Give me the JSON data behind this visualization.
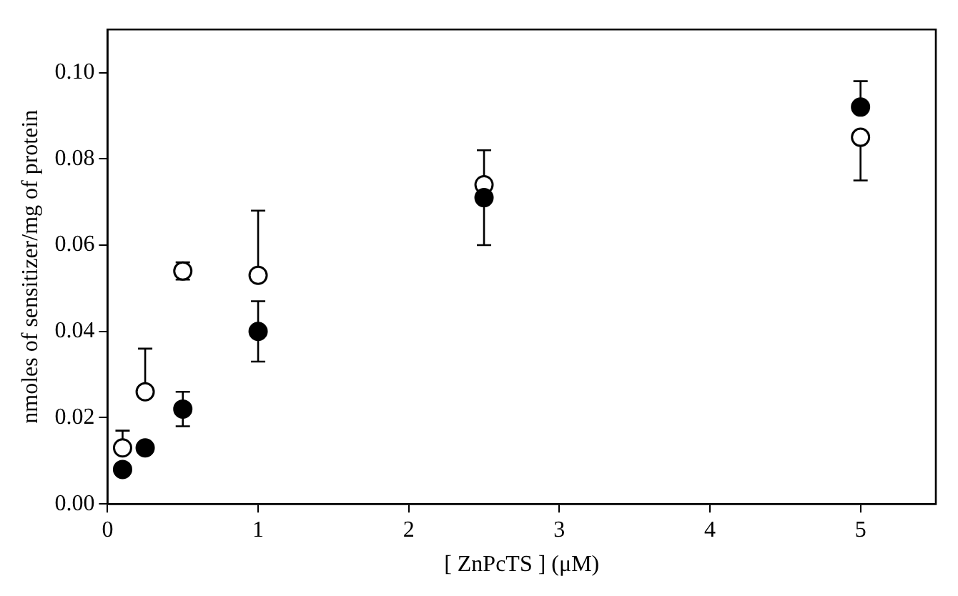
{
  "chart_data": {
    "type": "scatter",
    "xlabel": "[ ZnPcTS ] (μM)",
    "ylabel": "nmoles of sensitizer/mg of protein",
    "x": [
      0.1,
      0.25,
      0.5,
      1,
      2.5,
      5
    ],
    "series": [
      {
        "color": "#000000",
        "values": [
          0.008,
          0.013,
          0.022,
          0.04,
          0.071,
          0.092
        ],
        "errors": [
          null,
          null,
          [
            0.018,
            0.026
          ],
          [
            0.033,
            0.047
          ],
          [
            0.06,
            0.071
          ],
          [
            0.092,
            0.098
          ]
        ]
      },
      {
        "color": "#ffffff",
        "values": [
          0.013,
          0.026,
          0.054,
          0.053,
          0.074,
          0.085
        ],
        "errors": [
          [
            0.013,
            0.017
          ],
          [
            0.026,
            0.036
          ],
          [
            0.052,
            0.056
          ],
          [
            0.053,
            0.068
          ],
          [
            0.074,
            0.082
          ],
          [
            0.075,
            0.085
          ]
        ]
      }
    ],
    "xlim": [
      0,
      5.5
    ],
    "xticks": [
      0,
      1,
      2,
      3,
      4,
      5
    ],
    "ylim": [
      0,
      0.11
    ],
    "yticks": [
      {
        "value": 0,
        "label": "0.00"
      },
      {
        "value": 0.02,
        "label": "0.02"
      },
      {
        "value": 0.04,
        "label": "0.04"
      },
      {
        "value": 0.06,
        "label": "0.06"
      },
      {
        "value": 0.08,
        "label": "0.08"
      },
      {
        "value": 0.1,
        "label": "0.10"
      }
    ],
    "marker": "circle",
    "grid": false,
    "legend": false
  }
}
